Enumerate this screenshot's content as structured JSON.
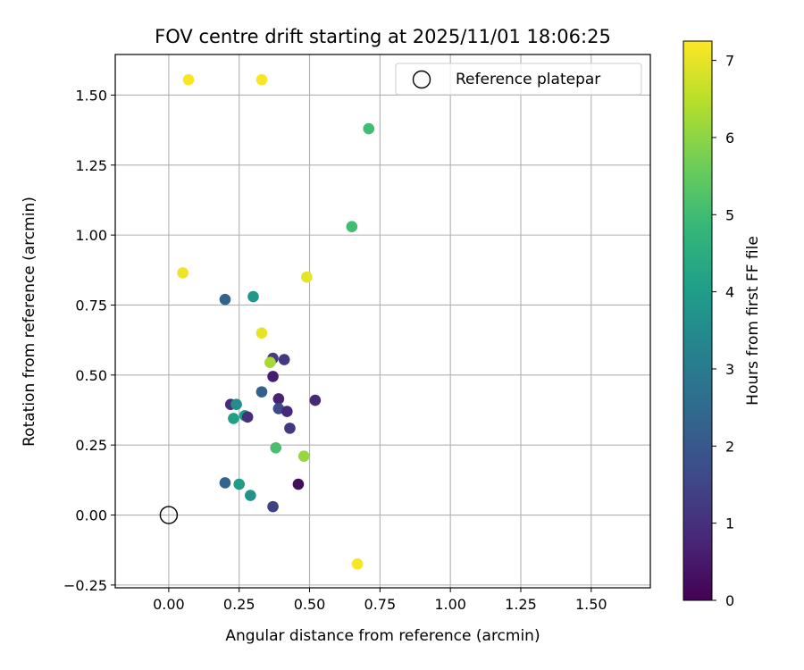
{
  "chart_data": {
    "type": "scatter",
    "title": "FOV centre drift starting at 2025/11/01 18:06:25",
    "xlabel": "Angular distance from reference (arcmin)",
    "ylabel": "Rotation from reference (arcmin)",
    "xlim": [
      -0.19,
      1.71
    ],
    "ylim": [
      -0.26,
      1.645
    ],
    "xticks": [
      0.0,
      0.25,
      0.5,
      0.75,
      1.0,
      1.25,
      1.5
    ],
    "xtick_labels": [
      "0.00",
      "0.25",
      "0.50",
      "0.75",
      "1.00",
      "1.25",
      "1.50"
    ],
    "yticks": [
      -0.25,
      0.0,
      0.25,
      0.5,
      0.75,
      1.0,
      1.25,
      1.5
    ],
    "ytick_labels": [
      "−0.25",
      "0.00",
      "0.25",
      "0.50",
      "0.75",
      "1.00",
      "1.25",
      "1.50"
    ],
    "grid": true,
    "legend": {
      "location": "top-right",
      "entries": [
        "Reference platepar"
      ]
    },
    "reference_point": {
      "x": 0.0,
      "y": 0.0,
      "label": "Reference platepar"
    },
    "colorbar": {
      "label": "Hours from first FF file",
      "colormap": "viridis",
      "range": [
        0,
        7.25
      ],
      "ticks": [
        0,
        1,
        2,
        3,
        4,
        5,
        6,
        7
      ],
      "tick_labels": [
        "0",
        "1",
        "2",
        "3",
        "4",
        "5",
        "6",
        "7"
      ]
    },
    "points": [
      {
        "x": 0.07,
        "y": 1.555,
        "c": 7.2
      },
      {
        "x": 0.33,
        "y": 1.555,
        "c": 7.2
      },
      {
        "x": 0.71,
        "y": 1.38,
        "c": 5.0
      },
      {
        "x": 0.65,
        "y": 1.03,
        "c": 5.0
      },
      {
        "x": 0.05,
        "y": 0.865,
        "c": 7.1
      },
      {
        "x": 0.49,
        "y": 0.85,
        "c": 7.0
      },
      {
        "x": 0.2,
        "y": 0.77,
        "c": 2.3
      },
      {
        "x": 0.3,
        "y": 0.78,
        "c": 3.8
      },
      {
        "x": 0.33,
        "y": 0.65,
        "c": 7.0
      },
      {
        "x": 0.37,
        "y": 0.56,
        "c": 1.3
      },
      {
        "x": 0.41,
        "y": 0.555,
        "c": 1.2
      },
      {
        "x": 0.36,
        "y": 0.545,
        "c": 6.3
      },
      {
        "x": 0.37,
        "y": 0.495,
        "c": 0.6
      },
      {
        "x": 0.33,
        "y": 0.44,
        "c": 2.2
      },
      {
        "x": 0.39,
        "y": 0.415,
        "c": 0.7
      },
      {
        "x": 0.52,
        "y": 0.41,
        "c": 0.8
      },
      {
        "x": 0.22,
        "y": 0.395,
        "c": 0.9
      },
      {
        "x": 0.24,
        "y": 0.395,
        "c": 3.5
      },
      {
        "x": 0.39,
        "y": 0.38,
        "c": 1.6
      },
      {
        "x": 0.42,
        "y": 0.37,
        "c": 0.8
      },
      {
        "x": 0.27,
        "y": 0.355,
        "c": 3.9
      },
      {
        "x": 0.28,
        "y": 0.35,
        "c": 1.0
      },
      {
        "x": 0.23,
        "y": 0.345,
        "c": 4.1
      },
      {
        "x": 0.43,
        "y": 0.31,
        "c": 1.2
      },
      {
        "x": 0.38,
        "y": 0.24,
        "c": 5.1
      },
      {
        "x": 0.48,
        "y": 0.21,
        "c": 6.1
      },
      {
        "x": 0.2,
        "y": 0.115,
        "c": 2.3
      },
      {
        "x": 0.25,
        "y": 0.11,
        "c": 4.0
      },
      {
        "x": 0.46,
        "y": 0.11,
        "c": 0.2
      },
      {
        "x": 0.29,
        "y": 0.07,
        "c": 3.7
      },
      {
        "x": 0.37,
        "y": 0.03,
        "c": 1.4
      },
      {
        "x": 0.67,
        "y": -0.175,
        "c": 7.2
      }
    ]
  },
  "colors": {
    "grid": "#b0b0b0",
    "axis": "#000000",
    "legend_border": "#cccccc"
  }
}
